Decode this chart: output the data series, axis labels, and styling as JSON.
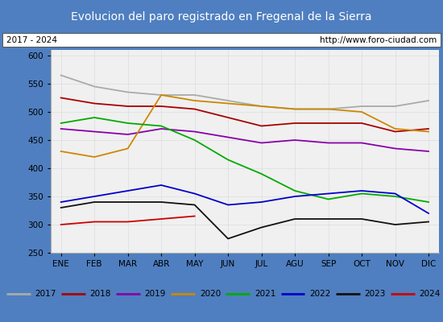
{
  "title": "Evolucion del paro registrado en Fregenal de la Sierra",
  "subtitle_left": "2017 - 2024",
  "subtitle_right": "http://www.foro-ciudad.com",
  "title_bg": "#4f7fc0",
  "title_color": "white",
  "ylim": [
    250,
    610
  ],
  "yticks": [
    250,
    300,
    350,
    400,
    450,
    500,
    550,
    600
  ],
  "months": [
    "ENE",
    "FEB",
    "MAR",
    "ABR",
    "MAY",
    "JUN",
    "JUL",
    "AGU",
    "SEP",
    "OCT",
    "NOV",
    "DIC"
  ],
  "series": {
    "2017": {
      "color": "#aaaaaa",
      "values": [
        565,
        545,
        535,
        530,
        530,
        520,
        510,
        505,
        505,
        510,
        510,
        520
      ]
    },
    "2018": {
      "color": "#aa0000",
      "values": [
        525,
        515,
        510,
        510,
        505,
        490,
        475,
        480,
        480,
        480,
        465,
        470
      ]
    },
    "2019": {
      "color": "#8800aa",
      "values": [
        470,
        465,
        460,
        470,
        465,
        455,
        445,
        450,
        445,
        445,
        435,
        430
      ]
    },
    "2020": {
      "color": "#cc8800",
      "values": [
        430,
        420,
        435,
        530,
        520,
        515,
        510,
        505,
        505,
        500,
        470,
        465
      ]
    },
    "2021": {
      "color": "#00aa00",
      "values": [
        480,
        490,
        480,
        475,
        450,
        415,
        390,
        360,
        345,
        355,
        350,
        340
      ]
    },
    "2022": {
      "color": "#0000cc",
      "values": [
        340,
        350,
        360,
        370,
        355,
        335,
        340,
        350,
        355,
        360,
        355,
        320
      ]
    },
    "2023": {
      "color": "#111111",
      "values": [
        330,
        340,
        340,
        340,
        335,
        275,
        295,
        310,
        310,
        310,
        300,
        305
      ]
    },
    "2024": {
      "color": "#cc0000",
      "values": [
        300,
        305,
        305,
        310,
        315,
        null,
        null,
        null,
        null,
        null,
        null,
        null
      ]
    }
  }
}
